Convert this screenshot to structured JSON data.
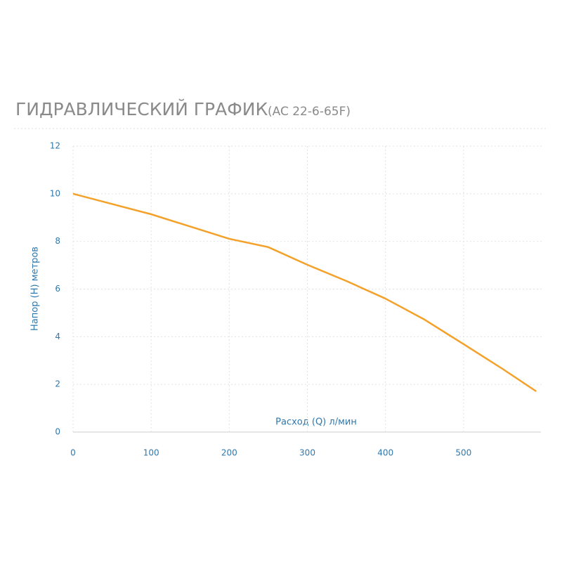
{
  "chart_data": {
    "type": "line",
    "title": "ГИДРАВЛИЧЕСКИЙ ГРАФИК",
    "subtitle": "(AC 22-6-65F)",
    "x_label": "Расход (Q) л/мин",
    "y_label": "Напор (H) метров",
    "x": [
      0,
      100,
      200,
      250,
      300,
      350,
      400,
      450,
      500,
      550,
      593
    ],
    "series": [
      {
        "name": "AC 22-6-65F",
        "color": "#f4a12a",
        "values": [
          10,
          9.14,
          8.11,
          7.76,
          7.02,
          6.34,
          5.6,
          4.72,
          3.69,
          2.65,
          1.71
        ]
      }
    ],
    "xlim": [
      0,
      600
    ],
    "ylim": [
      0,
      12
    ],
    "xticks": [
      0,
      100,
      200,
      300,
      400,
      500
    ],
    "yticks": [
      0,
      2,
      4,
      6,
      8,
      10,
      12
    ],
    "grid": true
  }
}
